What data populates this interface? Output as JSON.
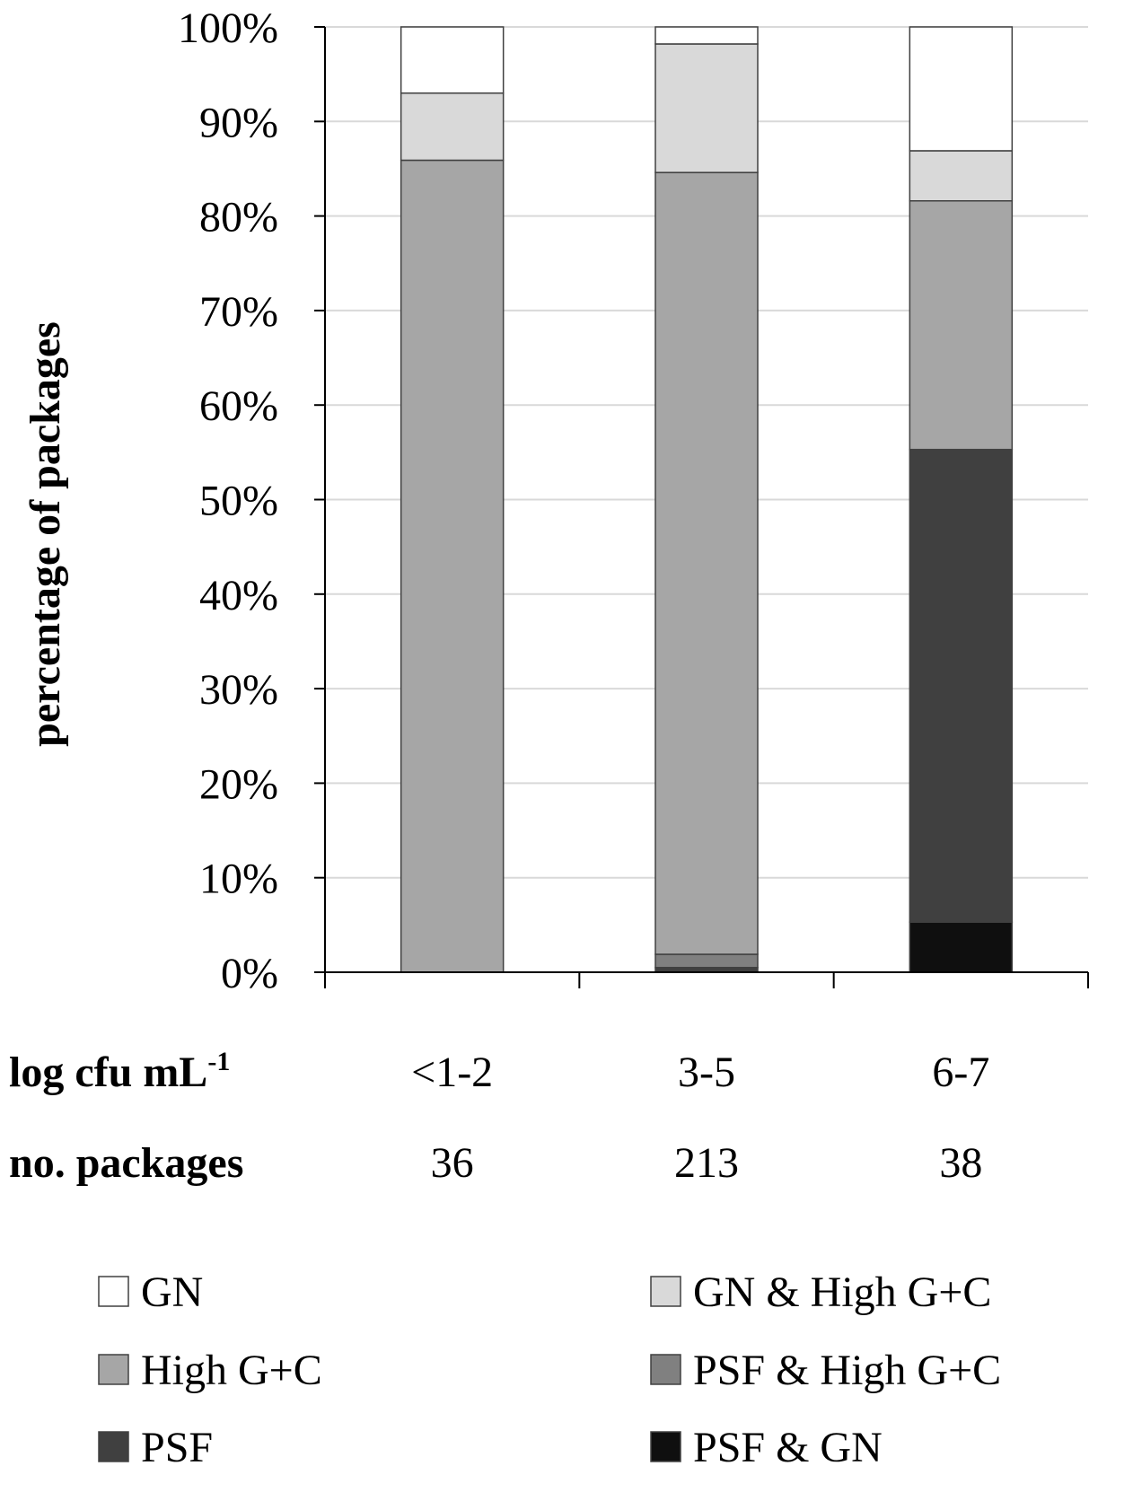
{
  "chart_data": {
    "type": "bar",
    "stacked": true,
    "ylabel": "percentage of packages",
    "ylim": [
      0,
      100
    ],
    "yticks": [
      "0%",
      "10%",
      "20%",
      "30%",
      "40%",
      "50%",
      "60%",
      "70%",
      "80%",
      "90%",
      "100%"
    ],
    "grid": true,
    "categories": [
      "<1-2",
      "3-5",
      "6-7"
    ],
    "row_labels": {
      "categories_label": "log cfu mL",
      "categories_label_sup": "-1",
      "counts_label": "no. packages"
    },
    "package_counts": [
      "36",
      "213",
      "38"
    ],
    "series": [
      {
        "name": "PSF & GN",
        "color": "#0f0f0f",
        "values": [
          0,
          0,
          5.3
        ]
      },
      {
        "name": "PSF",
        "color": "#404040",
        "values": [
          0,
          0.5,
          50
        ]
      },
      {
        "name": "PSF & High G+C",
        "color": "#808080",
        "values": [
          0,
          1.4,
          0
        ]
      },
      {
        "name": "High G+C",
        "color": "#a6a6a6",
        "values": [
          85.9,
          82.7,
          26.3
        ]
      },
      {
        "name": "GN & High G+C",
        "color": "#d9d9d9",
        "values": [
          7.1,
          13.6,
          5.3
        ]
      },
      {
        "name": "GN",
        "color": "#ffffff",
        "values": [
          7,
          1.8,
          13.1
        ]
      }
    ],
    "legend": {
      "placement": "bottom",
      "order": [
        "GN",
        "GN & High G+C",
        "High G+C",
        "PSF & High G+C",
        "PSF",
        "PSF & GN"
      ]
    }
  }
}
